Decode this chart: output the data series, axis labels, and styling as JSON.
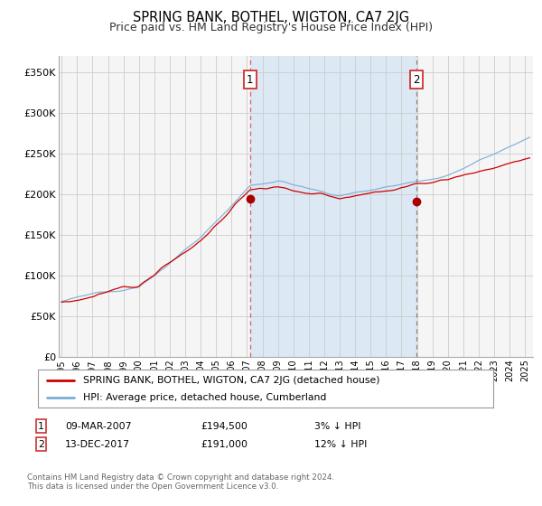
{
  "title": "SPRING BANK, BOTHEL, WIGTON, CA7 2JG",
  "subtitle": "Price paid vs. HM Land Registry's House Price Index (HPI)",
  "title_fontsize": 10.5,
  "subtitle_fontsize": 9.0,
  "background_color": "#ffffff",
  "plot_bg_color": "#f5f5f5",
  "shaded_bg_color": "#dde8f5",
  "grid_color": "#cccccc",
  "ylabel_values": [
    "£0",
    "£50K",
    "£100K",
    "£150K",
    "£200K",
    "£250K",
    "£300K",
    "£350K"
  ],
  "ytick_values": [
    0,
    50000,
    100000,
    150000,
    200000,
    250000,
    300000,
    350000
  ],
  "ylim": [
    0,
    370000
  ],
  "xlim_start": 1994.8,
  "xlim_end": 2025.5,
  "sale1_x": 2007.19,
  "sale1_y": 194500,
  "sale2_x": 2017.95,
  "sale2_y": 191000,
  "vline1_x": 2007.19,
  "vline2_x": 2017.95,
  "hpi_line_color": "#7aaed6",
  "price_line_color": "#cc0000",
  "marker_color": "#aa0000",
  "vline1_color": "#e06060",
  "vline2_color": "#888888",
  "legend_label_price": "SPRING BANK, BOTHEL, WIGTON, CA7 2JG (detached house)",
  "legend_label_hpi": "HPI: Average price, detached house, Cumberland",
  "table_row1": [
    "1",
    "09-MAR-2007",
    "£194,500",
    "3% ↓ HPI"
  ],
  "table_row2": [
    "2",
    "13-DEC-2017",
    "£191,000",
    "12% ↓ HPI"
  ],
  "footer1": "Contains HM Land Registry data © Crown copyright and database right 2024.",
  "footer2": "This data is licensed under the Open Government Licence v3.0."
}
